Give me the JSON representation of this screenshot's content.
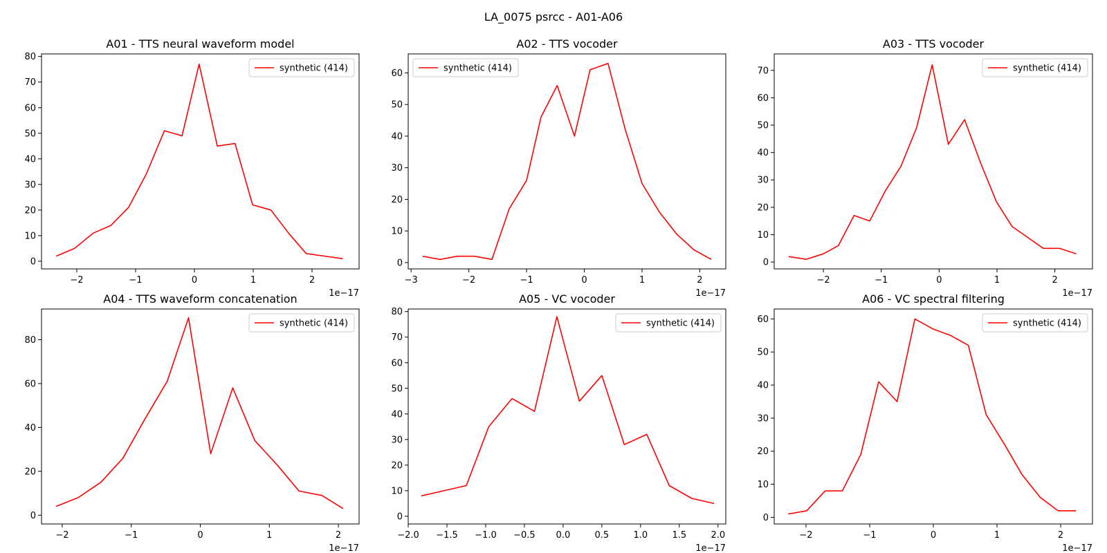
{
  "figure": {
    "title": "LA_0075 psrcc - A01-A06"
  },
  "chart_data": [
    {
      "type": "line",
      "title": "A01 - TTS neural waveform model",
      "offset_label": "1e−17",
      "xlim": [
        -2.6,
        2.8
      ],
      "ylim": [
        -3,
        81
      ],
      "xticks": [
        -2,
        -1,
        0,
        1,
        2
      ],
      "xtick_labels": [
        "−2",
        "−1",
        "0",
        "1",
        "2"
      ],
      "yticks": [
        0,
        10,
        20,
        30,
        40,
        50,
        60,
        70,
        80
      ],
      "ytick_labels": [
        "0",
        "10",
        "20",
        "30",
        "40",
        "50",
        "60",
        "70",
        "80"
      ],
      "legend_position": "upper right",
      "series": [
        {
          "name": "synthetic (414)",
          "color": "#ff0000",
          "x": [
            -2.35,
            -2.04,
            -1.72,
            -1.42,
            -1.12,
            -0.82,
            -0.51,
            -0.21,
            0.08,
            0.39,
            0.69,
            0.99,
            1.3,
            1.6,
            1.9,
            2.21,
            2.52
          ],
          "y": [
            2,
            5,
            11,
            14,
            21,
            34,
            51,
            49,
            77,
            45,
            46,
            22,
            20,
            11,
            3,
            2,
            1
          ]
        }
      ]
    },
    {
      "type": "line",
      "title": "A02 - TTS vocoder",
      "offset_label": "1e−17",
      "xlim": [
        -3.05,
        2.45
      ],
      "ylim": [
        -2,
        66
      ],
      "xticks": [
        -3,
        -2,
        -1,
        0,
        1,
        2
      ],
      "xtick_labels": [
        "−3",
        "−2",
        "−1",
        "0",
        "1",
        "2"
      ],
      "yticks": [
        0,
        10,
        20,
        30,
        40,
        50,
        60
      ],
      "ytick_labels": [
        "0",
        "10",
        "20",
        "30",
        "40",
        "50",
        "60"
      ],
      "legend_position": "upper left",
      "series": [
        {
          "name": "synthetic (414)",
          "color": "#ff0000",
          "x": [
            -2.8,
            -2.5,
            -2.2,
            -1.9,
            -1.6,
            -1.3,
            -1.0,
            -0.75,
            -0.47,
            -0.17,
            0.1,
            0.41,
            0.71,
            1.0,
            1.3,
            1.6,
            1.9,
            2.2
          ],
          "y": [
            2,
            1,
            2,
            2,
            1,
            17,
            26,
            46,
            56,
            40,
            61,
            63,
            42,
            25,
            16,
            9,
            4,
            1
          ]
        }
      ]
    },
    {
      "type": "line",
      "title": "A03 - TTS vocoder",
      "offset_label": "1e−17",
      "xlim": [
        -2.85,
        2.65
      ],
      "ylim": [
        -2.5,
        76
      ],
      "xticks": [
        -2,
        -1,
        0,
        1,
        2
      ],
      "xtick_labels": [
        "−2",
        "−1",
        "0",
        "1",
        "2"
      ],
      "yticks": [
        0,
        10,
        20,
        30,
        40,
        50,
        60,
        70
      ],
      "ytick_labels": [
        "0",
        "10",
        "20",
        "30",
        "40",
        "50",
        "60",
        "70"
      ],
      "legend_position": "upper right",
      "series": [
        {
          "name": "synthetic (414)",
          "color": "#ff0000",
          "x": [
            -2.6,
            -2.3,
            -2.0,
            -1.74,
            -1.47,
            -1.2,
            -0.93,
            -0.66,
            -0.39,
            -0.12,
            0.16,
            0.44,
            0.72,
            0.99,
            1.26,
            1.53,
            1.8,
            2.08,
            2.37
          ],
          "y": [
            2,
            1,
            3,
            6,
            17,
            15,
            26,
            35,
            49,
            72,
            43,
            52,
            36,
            22,
            13,
            9,
            5,
            5,
            3
          ]
        }
      ]
    },
    {
      "type": "line",
      "title": "A04 - TTS waveform concatenation",
      "offset_label": "1e−17",
      "xlim": [
        -2.3,
        2.3
      ],
      "ylim": [
        -4,
        94
      ],
      "xticks": [
        -2,
        -1,
        0,
        1,
        2
      ],
      "xtick_labels": [
        "−2",
        "−1",
        "0",
        "1",
        "2"
      ],
      "yticks": [
        0,
        20,
        40,
        60,
        80
      ],
      "ytick_labels": [
        "0",
        "20",
        "40",
        "60",
        "80"
      ],
      "legend_position": "upper right",
      "series": [
        {
          "name": "synthetic (414)",
          "color": "#ff0000",
          "x": [
            -2.09,
            -1.77,
            -1.44,
            -1.12,
            -0.8,
            -0.48,
            -0.17,
            0.15,
            0.47,
            0.79,
            1.11,
            1.43,
            1.76,
            2.07
          ],
          "y": [
            4,
            8,
            15,
            26,
            44,
            61,
            90,
            28,
            58,
            34,
            23,
            11,
            9,
            3
          ]
        }
      ]
    },
    {
      "type": "line",
      "title": "A05 - VC vocoder",
      "offset_label": "1e−17",
      "xlim": [
        -2.0,
        2.1
      ],
      "ylim": [
        -3,
        81
      ],
      "xticks": [
        -2.0,
        -1.5,
        -1.0,
        -0.5,
        0.0,
        0.5,
        1.0,
        1.5,
        2.0
      ],
      "xtick_labels": [
        "−2.0",
        "−1.5",
        "−1.0",
        "−0.5",
        "0.0",
        "0.5",
        "1.0",
        "1.5",
        "2.0"
      ],
      "yticks": [
        0,
        10,
        20,
        30,
        40,
        50,
        60,
        70,
        80
      ],
      "ytick_labels": [
        "0",
        "10",
        "20",
        "30",
        "40",
        "50",
        "60",
        "70",
        "80"
      ],
      "legend_position": "upper right",
      "series": [
        {
          "name": "synthetic (414)",
          "color": "#ff0000",
          "x": [
            -1.83,
            -1.54,
            -1.25,
            -0.96,
            -0.66,
            -0.37,
            -0.08,
            0.21,
            0.5,
            0.79,
            1.08,
            1.37,
            1.66,
            1.95
          ],
          "y": [
            8,
            10,
            12,
            35,
            46,
            41,
            78,
            45,
            55,
            28,
            32,
            12,
            7,
            5
          ]
        }
      ]
    },
    {
      "type": "line",
      "title": "A06 - VC spectral filtering",
      "offset_label": "1e−17",
      "xlim": [
        -2.5,
        2.5
      ],
      "ylim": [
        -2,
        63
      ],
      "xticks": [
        -2,
        -1,
        0,
        1,
        2
      ],
      "xtick_labels": [
        "−2",
        "−1",
        "0",
        "1",
        "2"
      ],
      "yticks": [
        0,
        10,
        20,
        30,
        40,
        50,
        60
      ],
      "ytick_labels": [
        "0",
        "10",
        "20",
        "30",
        "40",
        "50",
        "60"
      ],
      "legend_position": "upper right",
      "series": [
        {
          "name": "synthetic (414)",
          "color": "#ff0000",
          "x": [
            -2.28,
            -1.99,
            -1.7,
            -1.43,
            -1.14,
            -0.86,
            -0.57,
            -0.29,
            -0.01,
            0.27,
            0.55,
            0.83,
            1.12,
            1.39,
            1.68,
            1.96,
            2.24
          ],
          "y": [
            1,
            2,
            8,
            8,
            19,
            41,
            35,
            60,
            57,
            55,
            52,
            31,
            22,
            13,
            6,
            2,
            2
          ]
        }
      ]
    }
  ]
}
